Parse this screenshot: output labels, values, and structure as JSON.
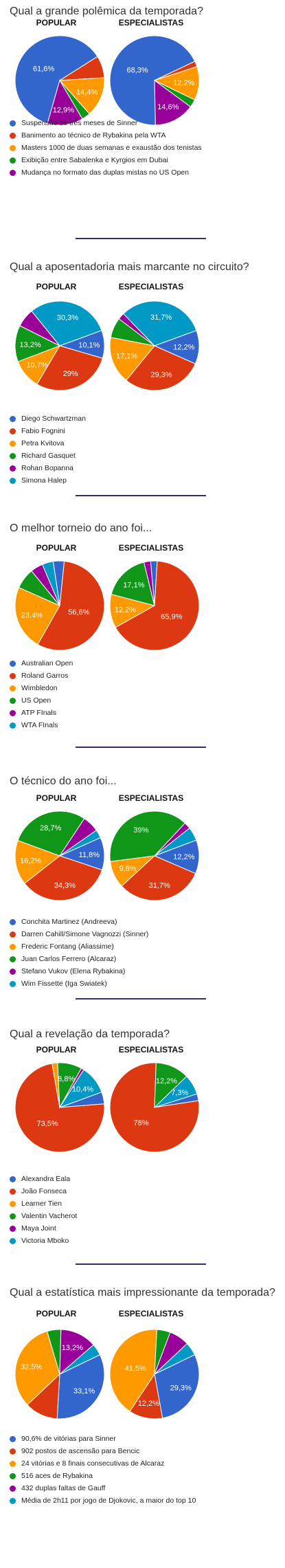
{
  "colors": {
    "blue": "#3366cc",
    "red": "#dc3912",
    "orange": "#ff9900",
    "green": "#109618",
    "purple": "#990099",
    "teal": "#0099c6",
    "divider": "#3c2a66"
  },
  "col_labels": {
    "popular": "POPULAR",
    "experts": "ESPECIALISTAS"
  },
  "chart_data": [
    {
      "type": "pie",
      "title": "Qual a grande polêmica da temporada?",
      "categories": [
        "Suspensão de três meses de Sinner",
        "Banimento ao técnico de Rybakina pela WTA",
        "Masters 1000 de duas semanas e exaustão dos tenistas",
        "Exibição entre Sabalenka e Kyrgios em Dubai",
        "Mudança no formato das duplas mistas no US Open"
      ],
      "series": [
        {
          "name": "POPULAR",
          "values": [
            61.6,
            8.0,
            14.4,
            3.1,
            12.9
          ],
          "labels": [
            "61,6%",
            "",
            "14,4%",
            "",
            "12,9%"
          ]
        },
        {
          "name": "ESPECIALISTAS",
          "values": [
            68.3,
            2.0,
            12.2,
            2.9,
            14.6
          ],
          "labels": [
            "68,3%",
            "",
            "12,2%",
            "",
            "14,6%"
          ]
        }
      ]
    },
    {
      "type": "pie",
      "title": "Qual a aposentadoria mais marcante no circuito?",
      "categories": [
        "Diego Schwartzman",
        "Fabio Fognini",
        "Petra Kvitova",
        "Richard Gasquet",
        "Rohan Bopanna",
        "Simona Halep"
      ],
      "series": [
        {
          "name": "POPULAR",
          "values": [
            10.1,
            29.0,
            10.7,
            13.2,
            6.7,
            30.3
          ],
          "labels": [
            "10,1%",
            "29%",
            "10,7%",
            "13,2%",
            "",
            "30,3%"
          ]
        },
        {
          "name": "ESPECIALISTAS",
          "values": [
            12.2,
            29.3,
            17.1,
            7.3,
            2.4,
            31.7
          ],
          "labels": [
            "12,2%",
            "29,3%",
            "17,1%",
            "",
            "",
            "31,7%"
          ]
        }
      ]
    },
    {
      "type": "pie",
      "title": "O melhor torneio do ano foi...",
      "categories": [
        "Australian Open",
        "Roland Garros",
        "Wimbledon",
        "US Open",
        "ATP FInals",
        "WTA FInals"
      ],
      "series": [
        {
          "name": "POPULAR",
          "values": [
            4.0,
            56.6,
            23.4,
            7.5,
            4.5,
            4.0
          ],
          "labels": [
            "",
            "56,6%",
            "23,4%",
            "",
            "",
            ""
          ]
        },
        {
          "name": "ESPECIALISTAS",
          "values": [
            2.4,
            65.9,
            12.2,
            17.1,
            2.4,
            0.0
          ],
          "labels": [
            "",
            "65,9%",
            "12,2%",
            "17,1%",
            "",
            ""
          ]
        }
      ]
    },
    {
      "type": "pie",
      "title": "O técnico do ano foi...",
      "categories": [
        "Conchita Martinez (Andreeva)",
        "Darren Cahill/Simone Vagnozzi (Sinner)",
        "Frederic Fontang (Aliassime)",
        "Juan Carlos Ferrero (Alcaraz)",
        "Stefano Vukov (Elena Rybakina)",
        "Wim Fissette (Iga Swiatek)"
      ],
      "series": [
        {
          "name": "POPULAR",
          "values": [
            11.8,
            34.3,
            16.2,
            28.7,
            6.0,
            3.0
          ],
          "labels": [
            "11,8%",
            "34,3%",
            "16,2%",
            "28,7%",
            "",
            ""
          ]
        },
        {
          "name": "ESPECIALISTAS",
          "values": [
            12.2,
            31.7,
            9.8,
            39.0,
            2.4,
            4.9
          ],
          "labels": [
            "12,2%",
            "31,7%",
            "9,8%",
            "39%",
            "",
            ""
          ]
        }
      ]
    },
    {
      "type": "pie",
      "title": "Qual a revelação da temporada?",
      "categories": [
        "Alexandra Eala",
        "João Fonseca",
        "Learner Tien",
        "Valentin Vacherot",
        "Maya Joint",
        "Victoria Mboko"
      ],
      "series": [
        {
          "name": "POPULAR",
          "values": [
            4.3,
            73.5,
            2.0,
            8.8,
            1.0,
            10.4
          ],
          "labels": [
            "",
            "73,5%",
            "",
            "8,8%",
            "",
            "10,4%"
          ]
        },
        {
          "name": "ESPECIALISTAS",
          "values": [
            2.5,
            78.0,
            0.0,
            12.2,
            0.0,
            7.3
          ],
          "labels": [
            "",
            "78%",
            "",
            "12,2%",
            "",
            "7,3%"
          ]
        }
      ]
    },
    {
      "type": "pie",
      "title": "Qual a estatística mais impressionante da temporada?",
      "categories": [
        "90,6% de vitórias para Sinner",
        "902 postos de ascensão para Bencic",
        "24 vitórias e 8 finais consecutivas de Alcaraz",
        "516 aces de Rybakina",
        "432 duplas faltas de Gauff",
        "Média de 2h11 por jogo de Djokovic, a maior do top 10"
      ],
      "series": [
        {
          "name": "POPULAR",
          "values": [
            33.1,
            12.0,
            32.5,
            5.0,
            13.2,
            4.2
          ],
          "labels": [
            "33,1%",
            "",
            "32,5%",
            "",
            "13,2%",
            ""
          ]
        },
        {
          "name": "ESPECIALISTAS",
          "values": [
            29.3,
            12.2,
            41.5,
            4.9,
            7.3,
            4.8
          ],
          "labels": [
            "29,3%",
            "12,2%",
            "41,5%",
            "",
            "",
            ""
          ]
        }
      ]
    }
  ]
}
